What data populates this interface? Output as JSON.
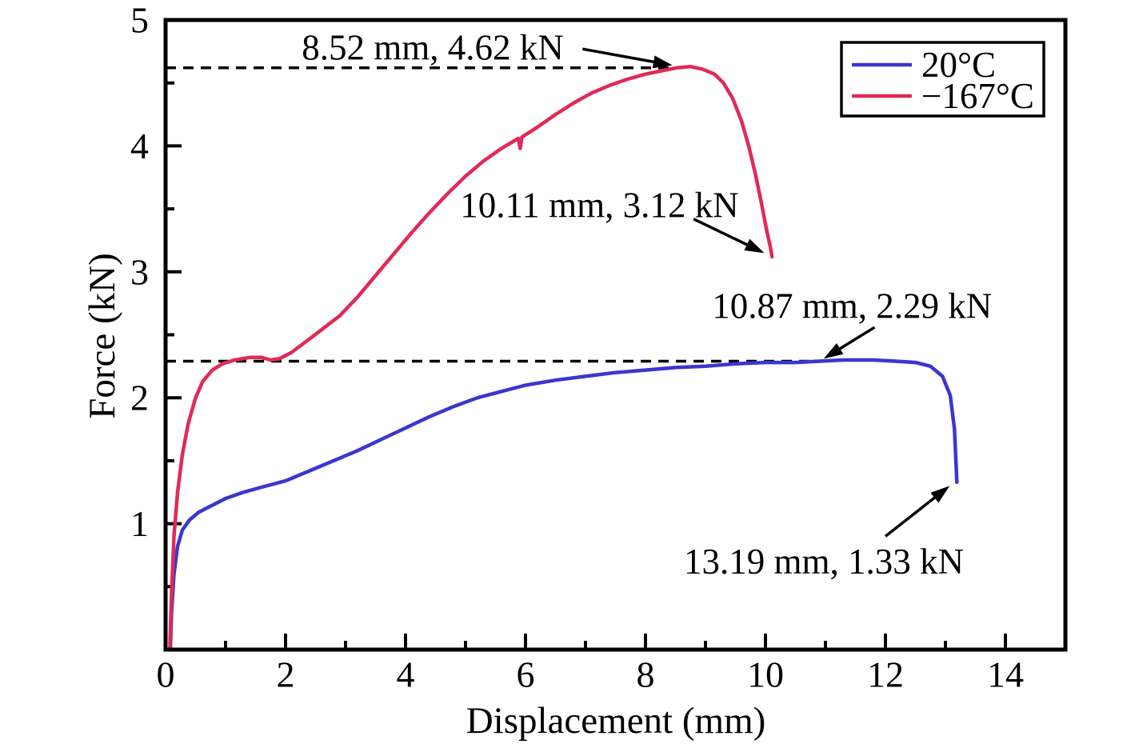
{
  "chart_data": {
    "type": "line",
    "title": "",
    "xlabel": "Displacement (mm)",
    "ylabel": "Force (kN)",
    "xlim": [
      0,
      15
    ],
    "ylim": [
      0,
      5
    ],
    "grid": false,
    "legend_position": "top-right",
    "x_axis": {
      "major_ticks": [
        0,
        2,
        4,
        6,
        8,
        10,
        12,
        14
      ],
      "minor_ticks": [
        1,
        3,
        5,
        7,
        9,
        11,
        13
      ]
    },
    "y_axis": {
      "major_ticks": [
        1,
        2,
        3,
        4,
        5
      ],
      "minor_ticks": [
        0.5,
        1.5,
        2.5,
        3.5,
        4.5
      ],
      "origin_label": "0"
    },
    "axis_color": "#000000",
    "series": [
      {
        "name": "20°C",
        "color": "#3b36cf",
        "points": [
          [
            0.08,
            0
          ],
          [
            0.1,
            0.3
          ],
          [
            0.14,
            0.6
          ],
          [
            0.2,
            0.82
          ],
          [
            0.28,
            0.95
          ],
          [
            0.4,
            1.03
          ],
          [
            0.55,
            1.09
          ],
          [
            0.75,
            1.14
          ],
          [
            1,
            1.2
          ],
          [
            1.3,
            1.25
          ],
          [
            1.6,
            1.29
          ],
          [
            2,
            1.34
          ],
          [
            2.4,
            1.42
          ],
          [
            2.8,
            1.5
          ],
          [
            3.2,
            1.58
          ],
          [
            3.6,
            1.67
          ],
          [
            4,
            1.76
          ],
          [
            4.4,
            1.85
          ],
          [
            4.8,
            1.93
          ],
          [
            5.2,
            2
          ],
          [
            5.6,
            2.05
          ],
          [
            6,
            2.1
          ],
          [
            6.5,
            2.14
          ],
          [
            7,
            2.17
          ],
          [
            7.5,
            2.2
          ],
          [
            8,
            2.22
          ],
          [
            8.5,
            2.24
          ],
          [
            9,
            2.25
          ],
          [
            9.5,
            2.27
          ],
          [
            10,
            2.28
          ],
          [
            10.5,
            2.28
          ],
          [
            10.87,
            2.29
          ],
          [
            11.3,
            2.3
          ],
          [
            11.8,
            2.3
          ],
          [
            12.2,
            2.29
          ],
          [
            12.5,
            2.28
          ],
          [
            12.75,
            2.25
          ],
          [
            12.95,
            2.17
          ],
          [
            13.08,
            2.02
          ],
          [
            13.15,
            1.75
          ],
          [
            13.19,
            1.33
          ]
        ]
      },
      {
        "name": "−167°C",
        "color": "#e02a57",
        "points": [
          [
            0.07,
            0
          ],
          [
            0.1,
            0.45
          ],
          [
            0.14,
            0.9
          ],
          [
            0.2,
            1.25
          ],
          [
            0.28,
            1.55
          ],
          [
            0.38,
            1.8
          ],
          [
            0.5,
            2
          ],
          [
            0.62,
            2.13
          ],
          [
            0.78,
            2.22
          ],
          [
            0.95,
            2.27
          ],
          [
            1.15,
            2.3
          ],
          [
            1.4,
            2.32
          ],
          [
            1.6,
            2.32
          ],
          [
            1.75,
            2.3
          ],
          [
            1.9,
            2.31
          ],
          [
            2.1,
            2.36
          ],
          [
            2.35,
            2.45
          ],
          [
            2.6,
            2.54
          ],
          [
            2.9,
            2.65
          ],
          [
            3.2,
            2.8
          ],
          [
            3.5,
            2.97
          ],
          [
            3.8,
            3.14
          ],
          [
            4.1,
            3.31
          ],
          [
            4.4,
            3.47
          ],
          [
            4.7,
            3.62
          ],
          [
            5,
            3.76
          ],
          [
            5.3,
            3.88
          ],
          [
            5.6,
            3.98
          ],
          [
            5.88,
            4.06
          ],
          [
            5.91,
            3.98
          ],
          [
            5.94,
            4.07
          ],
          [
            6.2,
            4.15
          ],
          [
            6.5,
            4.25
          ],
          [
            6.8,
            4.34
          ],
          [
            7.1,
            4.42
          ],
          [
            7.4,
            4.48
          ],
          [
            7.7,
            4.53
          ],
          [
            8,
            4.57
          ],
          [
            8.3,
            4.6
          ],
          [
            8.52,
            4.62
          ],
          [
            8.75,
            4.63
          ],
          [
            8.95,
            4.61
          ],
          [
            9.15,
            4.57
          ],
          [
            9.3,
            4.5
          ],
          [
            9.45,
            4.38
          ],
          [
            9.6,
            4.2
          ],
          [
            9.72,
            4
          ],
          [
            9.83,
            3.78
          ],
          [
            9.93,
            3.55
          ],
          [
            10.02,
            3.33
          ],
          [
            10.08,
            3.2
          ],
          [
            10.11,
            3.12
          ]
        ]
      }
    ],
    "annotations": [
      {
        "label": "8.52 mm, 4.62 kN",
        "text_x": 2.27,
        "text_y": 4.78,
        "arrow": [
          6.95,
          4.77,
          8.45,
          4.64
        ]
      },
      {
        "label": "10.11 mm, 3.12 kN",
        "text_x": 4.91,
        "text_y": 3.53,
        "arrow": [
          8.8,
          3.42,
          9.98,
          3.15
        ]
      },
      {
        "label": "10.87 mm, 2.29 kN",
        "text_x": 9.11,
        "text_y": 2.73,
        "arrow": [
          11.82,
          2.56,
          10.97,
          2.31
        ]
      },
      {
        "label": "13.19 mm, 1.33 kN",
        "text_x": 8.64,
        "text_y": 0.7,
        "arrow": [
          12.0,
          0.9,
          13.07,
          1.3
        ]
      }
    ],
    "dashed_reference_lines": [
      {
        "y": 4.62,
        "x_from": 0,
        "x_to": 8.52
      },
      {
        "y": 2.29,
        "x_from": 0,
        "x_to": 10.95
      }
    ]
  }
}
